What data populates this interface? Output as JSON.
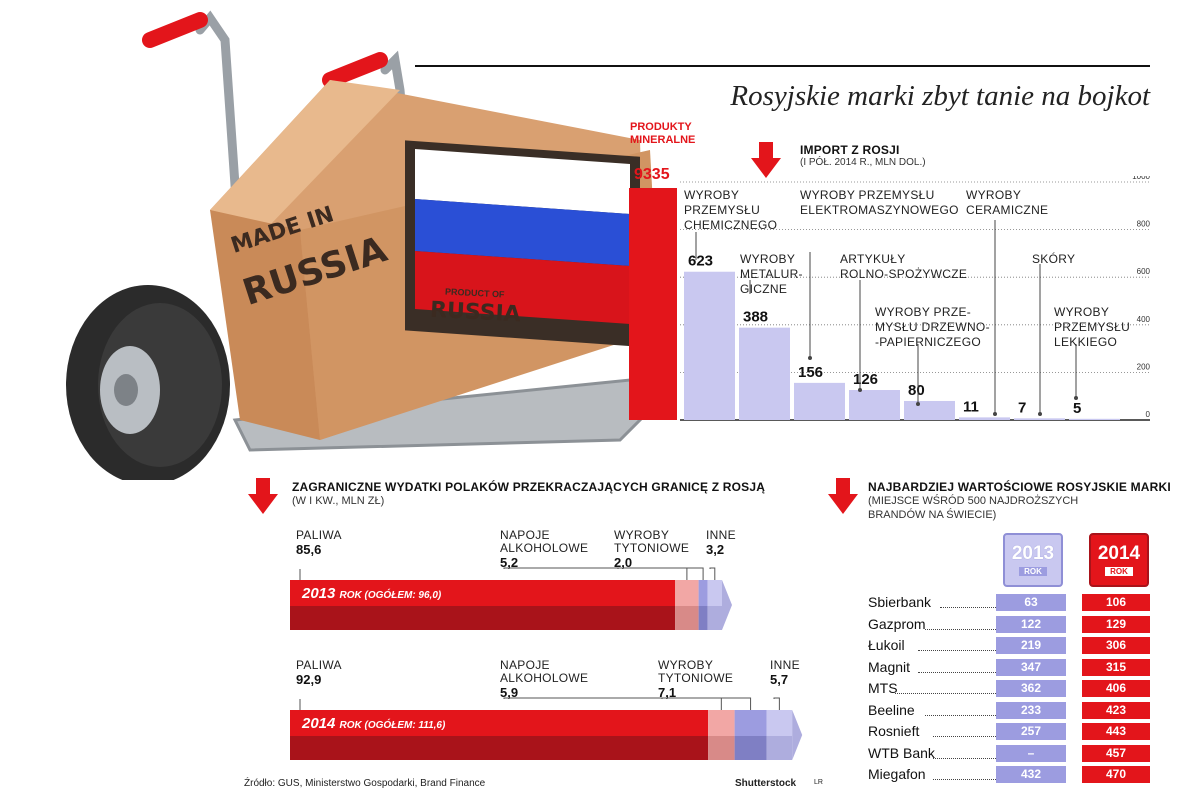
{
  "title": "Rosyjskie marki zbyt tanie na bojkot",
  "illustration": {
    "box_text_made_in": "MADE IN",
    "box_text_russia": "RUSSIA",
    "stamp_text": "PRODUCT OF",
    "stamp_russia": "RUSSIA"
  },
  "import": {
    "header": "IMPORT Z ROSJI",
    "subheader": "(I PÓŁ. 2014 R., MLN DOL.)",
    "mineral_label_1": "PRODUKTY",
    "mineral_label_2": "MINERALNE",
    "mineral_value": "9335"
  },
  "spending": {
    "header": "ZAGRANICZNE WYDATKI POLAKÓW PRZEKRACZAJĄCYCH GRANICĘ Z ROSJĄ",
    "subheader": "(W I KW., MLN ZŁ)"
  },
  "brands": {
    "header": "NAJBARDZIEJ WARTOŚCIOWE ROSYJSKIE MARKI",
    "subheader_1": "(MIEJSCE WŚRÓD 500 NAJDROŻSZYCH",
    "subheader_2": "BRANDÓW NA ŚWIECIE)",
    "year_a": "2013",
    "year_b": "2014",
    "rok": "ROK",
    "rows": [
      {
        "name": "Sbierbank",
        "y2013": "63",
        "y2014": "106"
      },
      {
        "name": "Gazprom",
        "y2013": "122",
        "y2014": "129"
      },
      {
        "name": "Łukoil",
        "y2013": "219",
        "y2014": "306"
      },
      {
        "name": "Magnit",
        "y2013": "347",
        "y2014": "315"
      },
      {
        "name": "MTS",
        "y2013": "362",
        "y2014": "406"
      },
      {
        "name": "Beeline",
        "y2013": "233",
        "y2014": "423"
      },
      {
        "name": "Rosnieft",
        "y2013": "257",
        "y2014": "443"
      },
      {
        "name": "WTB Bank",
        "y2013": "–",
        "y2014": "457"
      },
      {
        "name": "Miegafon",
        "y2013": "432",
        "y2014": "470"
      }
    ]
  },
  "source": "Źródło: GUS, Ministerstwo Gospodarki, Brand Finance",
  "credit": "Shutterstock",
  "author": "LR",
  "colors": {
    "red": "#e3151b",
    "dark_red": "#a9131a",
    "lavender": "#c9c8f0",
    "lavender_dark": "#9c9ce0",
    "pink": "#f2a7a5",
    "purple_bar": "#8f8fd6"
  },
  "chart_data": [
    {
      "type": "bar",
      "title": "IMPORT Z ROSJI",
      "subtitle": "(I PÓŁ. 2014 R., MLN DOL.)",
      "categories": [
        "WYROBY PRZEMYSŁU CHEMICZNEGO",
        "WYROBY METALUR- GICZNE",
        "WYROBY PRZEMYSŁU ELEKTROMASZYNOWEGO",
        "ARTYKUŁY ROLNO-SPOŻYWCZE",
        "WYROBY PRZE- MYSŁU DRZEWNO- -PAPIERNICZEGO",
        "WYROBY CERAMICZNE",
        "SKÓRY",
        "WYROBY PRZEMYSŁU LEKKIEGO"
      ],
      "values": [
        623,
        388,
        156,
        126,
        80,
        11,
        7,
        5
      ],
      "value_labels": [
        "623",
        "388",
        "156",
        "126",
        "80",
        "11",
        "7",
        "5"
      ],
      "ylim": [
        0,
        1000
      ],
      "yticks": [
        "0",
        "200",
        "400",
        "600",
        "800",
        "1000"
      ],
      "grid": true,
      "extra_bar": {
        "label": "PRODUKTY MINERALNE",
        "value": 9335
      }
    },
    {
      "type": "bar",
      "orientation": "horizontal-stacked",
      "title": "ZAGRANICZNE WYDATKI POLAKÓW PRZEKRACZAJĄCYCH GRANICĘ Z ROSJĄ",
      "subtitle": "(W I KW., MLN ZŁ)",
      "rows": [
        {
          "year_label": "2013",
          "rok": "ROK",
          "total_label": "(OGÓŁEM: 96,0)",
          "segments": [
            {
              "name": "PALIWA",
              "value": 85.6,
              "label": "85,6"
            },
            {
              "name": "NAPOJE ALKOHOLOWE",
              "value": 5.2,
              "label": "5,2"
            },
            {
              "name": "WYROBY TYTONIOWE",
              "value": 2.0,
              "label": "2,0"
            },
            {
              "name": "INNE",
              "value": 3.2,
              "label": "3,2"
            }
          ]
        },
        {
          "year_label": "2014",
          "rok": "ROK",
          "total_label": "(OGÓŁEM: 111,6)",
          "segments": [
            {
              "name": "PALIWA",
              "value": 92.9,
              "label": "92,9"
            },
            {
              "name": "NAPOJE ALKOHOLOWE",
              "value": 5.9,
              "label": "5,9"
            },
            {
              "name": "WYROBY TYTONIOWE",
              "value": 7.1,
              "label": "7,1"
            },
            {
              "name": "INNE",
              "value": 5.7,
              "label": "5,7"
            }
          ]
        }
      ]
    }
  ]
}
